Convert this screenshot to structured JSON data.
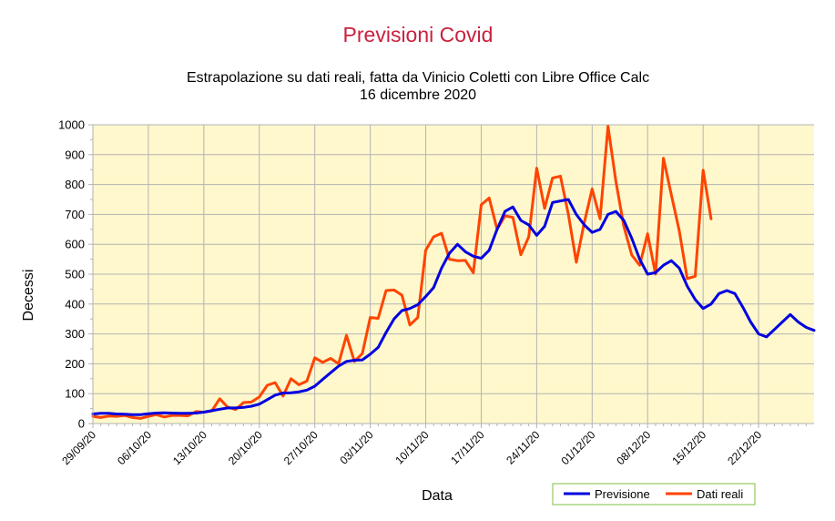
{
  "chart_data": {
    "type": "line",
    "title": "Previsioni Covid",
    "subtitle_lines": [
      "Estrapolazione su dati reali, fatta da Vinicio Coletti con Libre Office Calc",
      "16 dicembre 2020"
    ],
    "xlabel": "Data",
    "ylabel": "Decessi",
    "ylim": [
      0,
      1000
    ],
    "yticks": [
      0,
      100,
      200,
      300,
      400,
      500,
      600,
      700,
      800,
      900,
      1000
    ],
    "xlim": [
      0,
      91
    ],
    "xtick_positions": [
      0,
      7,
      14,
      21,
      28,
      35,
      42,
      49,
      56,
      63,
      70,
      77,
      84
    ],
    "xtick_labels": [
      "29/09/20",
      "06/10/20",
      "13/10/20",
      "20/10/20",
      "27/10/20",
      "03/11/20",
      "10/11/20",
      "17/11/20",
      "24/11/20",
      "01/12/20",
      "08/12/20",
      "15/12/20",
      "22/12/20"
    ],
    "grid": true,
    "plot_background": "#fff8cc",
    "legend_position": "bottom-right",
    "series": [
      {
        "name": "Previsione",
        "color": "#0000e0",
        "values": [
          32,
          34,
          34,
          32,
          31,
          30,
          30,
          33,
          35,
          36,
          35,
          34,
          34,
          35,
          38,
          43,
          48,
          52,
          52,
          54,
          58,
          65,
          80,
          95,
          102,
          103,
          106,
          112,
          125,
          148,
          170,
          192,
          208,
          212,
          213,
          232,
          255,
          305,
          350,
          378,
          385,
          398,
          425,
          455,
          520,
          570,
          600,
          575,
          560,
          553,
          580,
          650,
          710,
          725,
          680,
          665,
          630,
          660,
          740,
          745,
          750,
          700,
          665,
          640,
          650,
          700,
          710,
          680,
          620,
          550,
          500,
          505,
          530,
          545,
          520,
          460,
          415,
          385,
          400,
          435,
          445,
          435,
          390,
          340,
          300,
          290,
          315,
          340,
          365,
          340,
          322,
          312
        ]
      },
      {
        "name": "Dati reali",
        "color": "#ff4400",
        "values": [
          24,
          20,
          25,
          24,
          27,
          20,
          17,
          24,
          30,
          22,
          27,
          27,
          26,
          40,
          38,
          42,
          83,
          55,
          47,
          70,
          72,
          89,
          128,
          137,
          92,
          150,
          130,
          142,
          220,
          205,
          218,
          200,
          295,
          208,
          234,
          355,
          352,
          445,
          447,
          430,
          330,
          355,
          580,
          625,
          637,
          550,
          545,
          546,
          505,
          732,
          755,
          650,
          695,
          690,
          565,
          625,
          855,
          720,
          822,
          828,
          700,
          540,
          672,
          785,
          685,
          995,
          810,
          660,
          564,
          530,
          635,
          500,
          888,
          765,
          645,
          485,
          493,
          848,
          685
        ]
      }
    ]
  }
}
